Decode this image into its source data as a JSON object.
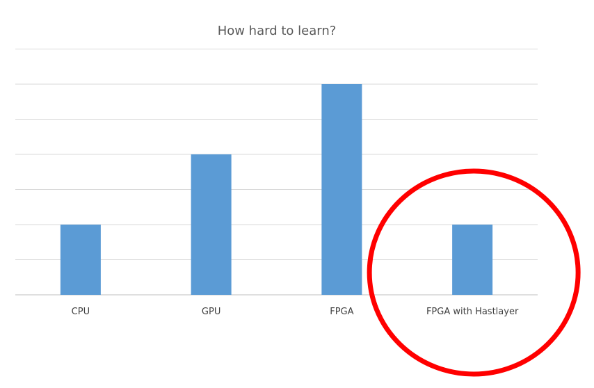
{
  "chart_data": {
    "type": "bar",
    "title": "How hard to learn?",
    "categories": [
      "CPU",
      "GPU",
      "FPGA",
      "FPGA with Hastlayer"
    ],
    "values": [
      2,
      4,
      6,
      2
    ],
    "ylim": [
      0,
      7
    ],
    "y_gridlines": [
      1,
      2,
      3,
      4,
      5,
      6,
      7
    ],
    "y_tick_labels_shown": false,
    "grid": true,
    "bar_color": "#5b9bd5",
    "highlight": {
      "category": "FPGA with Hastlayer",
      "shape": "circle",
      "color": "#ff0000"
    }
  }
}
